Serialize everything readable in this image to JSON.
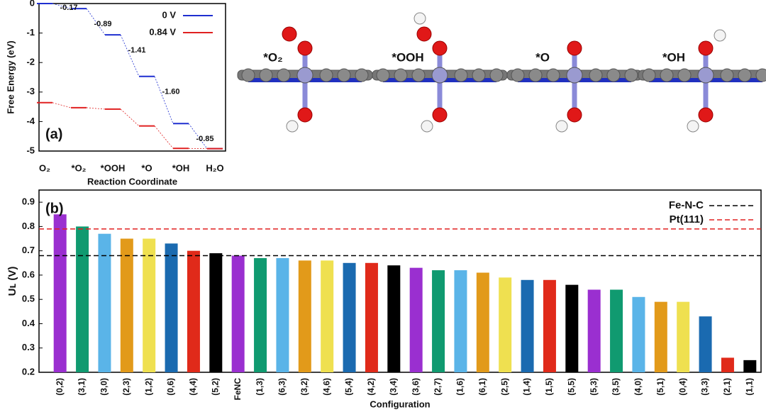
{
  "chart_data": [
    {
      "type": "step",
      "panel_label": "(a)",
      "xlabel": "Reaction Coordinate",
      "ylabel": "Free Energy (eV)",
      "categories": [
        "O₂",
        "*O₂",
        "*OOH",
        "*O",
        "*OH",
        "H₂O"
      ],
      "series": [
        {
          "name": "0 V",
          "color": "#1f2fd0",
          "values": [
            0,
            -0.17,
            -1.06,
            -2.47,
            -4.07,
            -4.92
          ]
        },
        {
          "name": "0.84 V",
          "color": "#e02020",
          "values": [
            -3.36,
            -3.53,
            -3.58,
            -4.15,
            -4.91,
            -4.92
          ]
        }
      ],
      "annotations": [
        "-0.17",
        "-0.89",
        "-1.41",
        "-1.60",
        "-0.85"
      ],
      "ylim": [
        -5,
        0
      ],
      "yticks": [
        -5,
        -4,
        -3,
        -2,
        -1,
        0
      ],
      "legend": "upper right"
    },
    {
      "type": "bar",
      "panel_label": "(b)",
      "xlabel": "Configuration",
      "ylabel": "Uʟ (V)",
      "categories": [
        "(0,2)",
        "(3,1)",
        "(3,0)",
        "(2,3)",
        "(1,2)",
        "(0,6)",
        "(4,4)",
        "(5,2)",
        "FeNC",
        "(1,3)",
        "(6,3)",
        "(3,2)",
        "(4,6)",
        "(5,4)",
        "(4,2)",
        "(3,4)",
        "(3,6)",
        "(2,7)",
        "(1,6)",
        "(6,1)",
        "(2,5)",
        "(1,4)",
        "(1,5)",
        "(5,5)",
        "(5,3)",
        "(3,5)",
        "(4,0)",
        "(5,1)",
        "(0,4)",
        "(3,3)",
        "(2,1)",
        "(1,1)"
      ],
      "values": [
        0.85,
        0.8,
        0.77,
        0.75,
        0.75,
        0.73,
        0.7,
        0.69,
        0.68,
        0.67,
        0.67,
        0.66,
        0.66,
        0.65,
        0.65,
        0.64,
        0.63,
        0.62,
        0.62,
        0.61,
        0.59,
        0.58,
        0.58,
        0.56,
        0.54,
        0.54,
        0.51,
        0.49,
        0.49,
        0.43,
        0.26,
        0.25
      ],
      "colors": [
        "#9a2fd0",
        "#109a70",
        "#5ab4e8",
        "#e29a1a",
        "#efe050",
        "#1a6ab0",
        "#e02a1a",
        "#000000",
        "#9a2fd0",
        "#109a70",
        "#5ab4e8",
        "#e29a1a",
        "#efe050",
        "#1a6ab0",
        "#e02a1a",
        "#000000",
        "#9a2fd0",
        "#109a70",
        "#5ab4e8",
        "#e29a1a",
        "#efe050",
        "#1a6ab0",
        "#e02a1a",
        "#000000",
        "#9a2fd0",
        "#109a70",
        "#5ab4e8",
        "#e29a1a",
        "#efe050",
        "#1a6ab0",
        "#e02a1a",
        "#000000"
      ],
      "reference_lines": [
        {
          "name": "Fe-N-C",
          "value": 0.68,
          "color": "#000000"
        },
        {
          "name": "Pt(111)",
          "value": 0.79,
          "color": "#e02020"
        }
      ],
      "ylim": [
        0.2,
        0.95
      ],
      "yticks": [
        0.2,
        0.3,
        0.4,
        0.5,
        0.6,
        0.7,
        0.8,
        0.9
      ],
      "legend": "upper right"
    }
  ],
  "structures": [
    "*O₂",
    "*OOH",
    "*O",
    "*OH"
  ]
}
